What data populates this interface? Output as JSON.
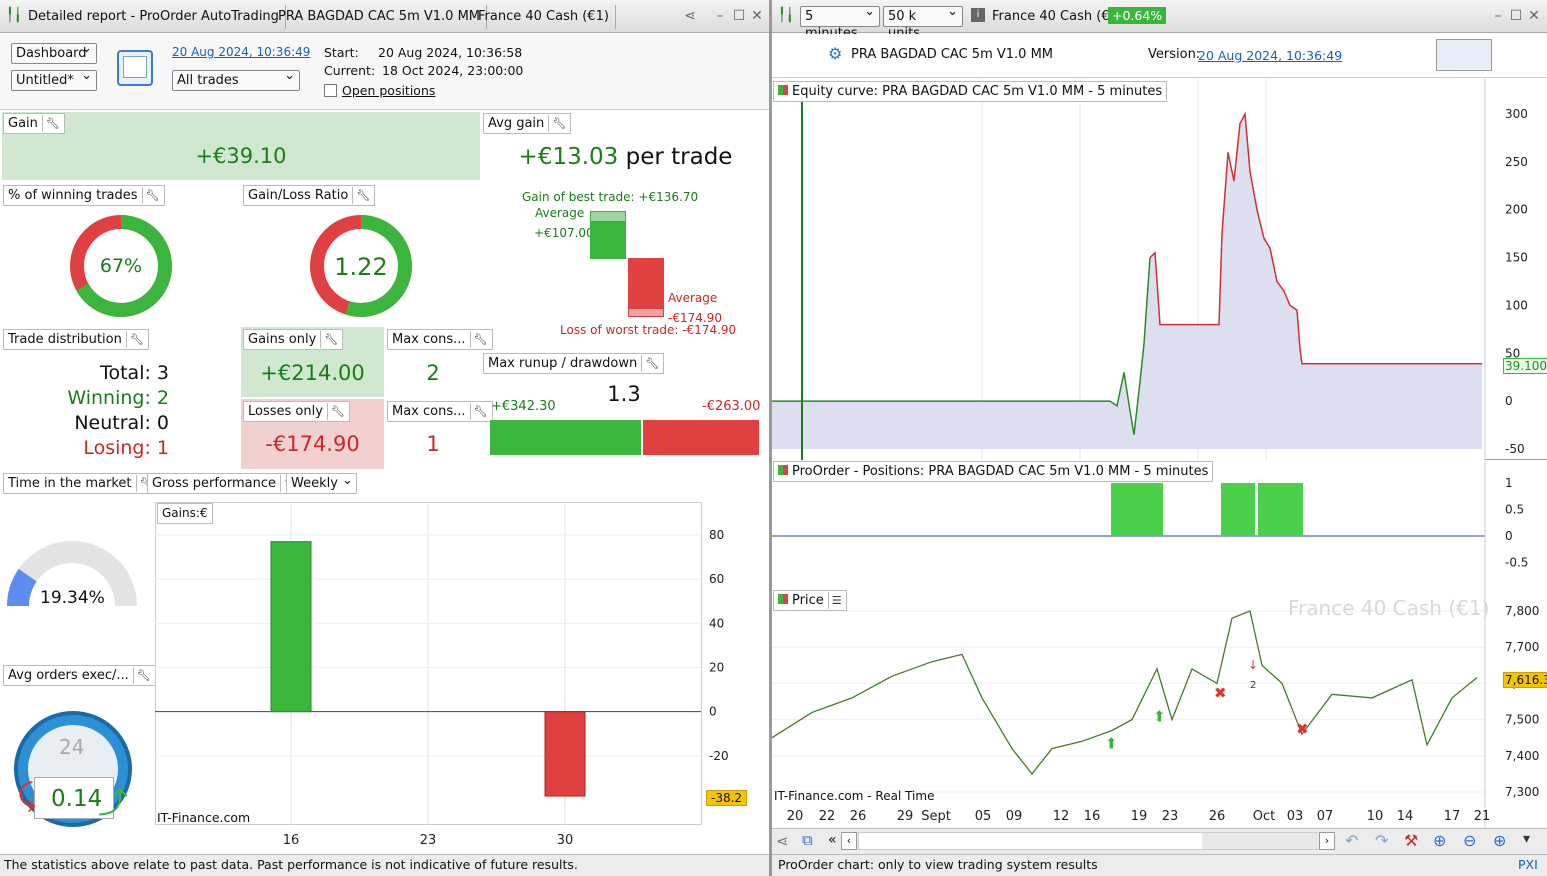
{
  "left_window": {
    "title": "Detailed report - ProOrder AutoTrading",
    "tab_strategy": "PRA BAGDAD CAC 5m V1.0 MM",
    "tab_instrument": "France 40 Cash (€1)"
  },
  "toolbar": {
    "dashboard": "Dashboard",
    "untitled": "Untitled*",
    "date_link": "20 Aug 2024, 10:36:49",
    "trades_filter": "All trades",
    "start_label": "Start:",
    "start_value": "20 Aug 2024, 10:36:58",
    "current_label": "Current:",
    "current_value": "18 Oct 2024, 23:00:00",
    "open_positions": "Open positions"
  },
  "gain": {
    "title": "Gain",
    "value": "+€39.10"
  },
  "avg_gain": {
    "title": "Avg gain",
    "value": "+€13.03",
    "unit": "per trade",
    "best": "Gain of best trade: +€136.70",
    "avg_label": "Average",
    "avg_value": "+€107.00",
    "loss_avg_label": "Average",
    "loss_avg_value": "-€174.90",
    "worst": "Loss of worst trade: -€174.90"
  },
  "winning_pct": {
    "title": "% of winning trades",
    "value": "67%",
    "fraction": 0.67
  },
  "gain_loss_ratio": {
    "title": "Gain/Loss Ratio",
    "value": "1.22",
    "fraction": 0.55
  },
  "trade_distribution": {
    "title": "Trade distribution",
    "total": "Total: 3",
    "winning": "Winning: 2",
    "neutral": "Neutral: 0",
    "losing": "Losing: 1"
  },
  "gains_only": {
    "title": "Gains only",
    "value": "+€214.00"
  },
  "losses_only": {
    "title": "Losses only",
    "value": "-€174.90"
  },
  "max_cons_1": {
    "title": "Max cons...",
    "value": "2"
  },
  "max_cons_2": {
    "title": "Max cons...",
    "value": "1"
  },
  "runup": {
    "title": "Max runup / drawdown",
    "ratio": "1.3",
    "runup": "+€342.30",
    "drawdown": "-€263.00"
  },
  "time_market": {
    "title": "Time in the market",
    "value": "19.34%",
    "fraction": 0.1934
  },
  "gross_perf": {
    "title": "Gross performance",
    "period": "Weekly",
    "legend": "Gains:€",
    "credit": "IT-Finance.com",
    "current_label": "-38.2"
  },
  "avg_orders": {
    "title": "Avg orders exec/...",
    "clock_num": "24",
    "value": "0.14"
  },
  "left_status": "The statistics above relate to past data. Past performance is not indicative of future results.",
  "right_window": {
    "timeframe": "5 minutes",
    "units": "50 k units",
    "instrument": "France 40 Cash (€1)",
    "change": "+0.64%",
    "strategy": "PRA BAGDAD CAC 5m V1.0 MM",
    "version_label": "Version:",
    "version_link": "20 Aug 2024, 10:36:49"
  },
  "equity": {
    "title": "Equity curve: PRA BAGDAD CAC 5m V1.0 MM - 5 minutes",
    "current": "39.100",
    "y_ticks": [
      "300",
      "250",
      "200",
      "150",
      "100",
      "50",
      "0",
      "-50"
    ]
  },
  "positions": {
    "title": "ProOrder - Positions: PRA BAGDAD CAC 5m V1.0 MM - 5 minutes",
    "y_ticks": [
      "1",
      "0.5",
      "0",
      "-0.5"
    ]
  },
  "price": {
    "title": "Price",
    "watermark": "France 40 Cash (€1)",
    "current": "7,616.3",
    "credit": "IT-Finance.com - Real Time",
    "y_ticks": [
      "7,800",
      "7,700",
      "7,600",
      "7,500",
      "7,400",
      "7,300"
    ],
    "marker_label": "2"
  },
  "x_axis": [
    "20",
    "22",
    "26",
    "29",
    "Sept",
    "05",
    "09",
    "12",
    "16",
    "19",
    "23",
    "26",
    "Oct",
    "03",
    "07",
    "10",
    "14",
    "17",
    "21"
  ],
  "right_status": "ProOrder chart: only to view trading system results",
  "right_status_icon": "PXI",
  "chart_data": [
    {
      "type": "bar",
      "title": "",
      "categories": [
        "16",
        "23",
        "30"
      ],
      "values": [
        77,
        0,
        -38.2
      ],
      "legend": "Gains:€",
      "ylim": [
        -40,
        85
      ],
      "y_ticks": [
        "80",
        "60",
        "40",
        "20",
        "0",
        "-20"
      ]
    },
    {
      "type": "line",
      "title": "Equity curve: PRA BAGDAD CAC 5m V1.0 MM - 5 minutes",
      "series": [
        {
          "name": "Equity",
          "values": [
            0,
            0,
            0,
            0,
            -35,
            40,
            160,
            78,
            78,
            78,
            300,
            230,
            130,
            39.1,
            39.1,
            39.1
          ]
        }
      ],
      "ylim": [
        -50,
        300
      ]
    }
  ]
}
